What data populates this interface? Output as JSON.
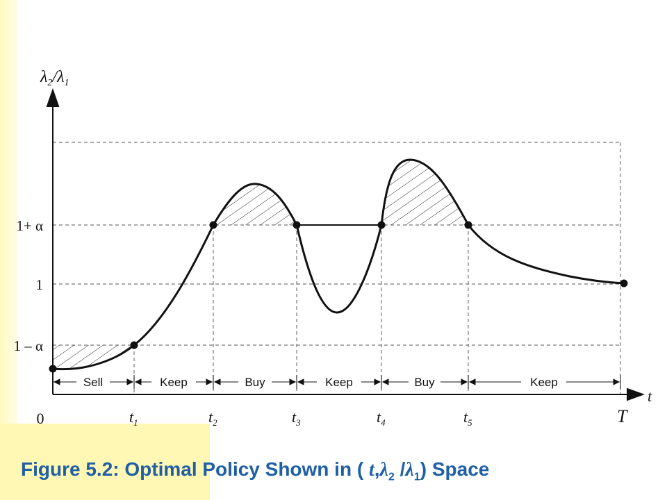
{
  "caption": {
    "prefix": "Figure 5.2: Optimal Policy Shown in (",
    "t": "t",
    "comma": ",",
    "lambda": "λ",
    "sub2": "2",
    "slash": "/",
    "sub1": "1",
    "suffix": ") Space"
  },
  "axes": {
    "y_label_lambda2": "λ",
    "y_sub2": "2",
    "y_slash": "/",
    "y_label_lambda1": "λ",
    "y_sub1": "1",
    "x_label": "t",
    "origin": "0"
  },
  "y_ticks": [
    {
      "label": "1+ α"
    },
    {
      "label": "1"
    },
    {
      "label": "1 – α"
    }
  ],
  "x_ticks": [
    {
      "main": "t",
      "sub": "1"
    },
    {
      "main": "t",
      "sub": "2"
    },
    {
      "main": "t",
      "sub": "3"
    },
    {
      "main": "t",
      "sub": "4"
    },
    {
      "main": "t",
      "sub": "5"
    },
    {
      "main": "T",
      "sub": ""
    }
  ],
  "regions": [
    {
      "label": "Sell"
    },
    {
      "label": "Keep"
    },
    {
      "label": "Buy"
    },
    {
      "label": "Keep"
    },
    {
      "label": "Buy"
    },
    {
      "label": "Keep"
    }
  ],
  "colors": {
    "caption": "#1f5fa6",
    "curve": "#111111",
    "grid": "#777777",
    "background_accent": "#fff7b3"
  }
}
